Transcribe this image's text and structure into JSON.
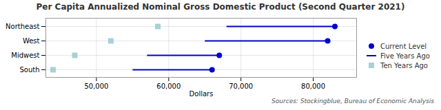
{
  "chart_data": {
    "type": "dumbbell",
    "title": "Per Capita Annualized Nominal Gross Domestic Product (Second Quarter 2021)",
    "xlabel": "Dollars",
    "annotation": "Sources: Stockingblue, Bureau of Economic Analysis",
    "categories": [
      "Northeast",
      "West",
      "Midwest",
      "South"
    ],
    "series": [
      {
        "name": "Current Level",
        "type": "dot",
        "marker": "circle",
        "color": "#0000cc",
        "values": [
          83000,
          82000,
          67000,
          66000
        ]
      },
      {
        "name": "Five Years Ago",
        "type": "segment",
        "line_style": "solid",
        "color": "#0000cc",
        "values": [
          68000,
          65000,
          57000,
          55000
        ]
      },
      {
        "name": "Ten Years Ago",
        "type": "dot",
        "marker": "square",
        "color": "#a8d0d8",
        "values": [
          58500,
          52000,
          47000,
          44000
        ]
      }
    ],
    "xlim": [
      43000,
      86000
    ],
    "xticks": [
      {
        "value": 50000,
        "label": "50,000"
      },
      {
        "value": 60000,
        "label": "60,000"
      },
      {
        "value": 70000,
        "label": "70,000"
      },
      {
        "value": 80000,
        "label": "80,000"
      }
    ],
    "grid": true,
    "legend": "right"
  }
}
